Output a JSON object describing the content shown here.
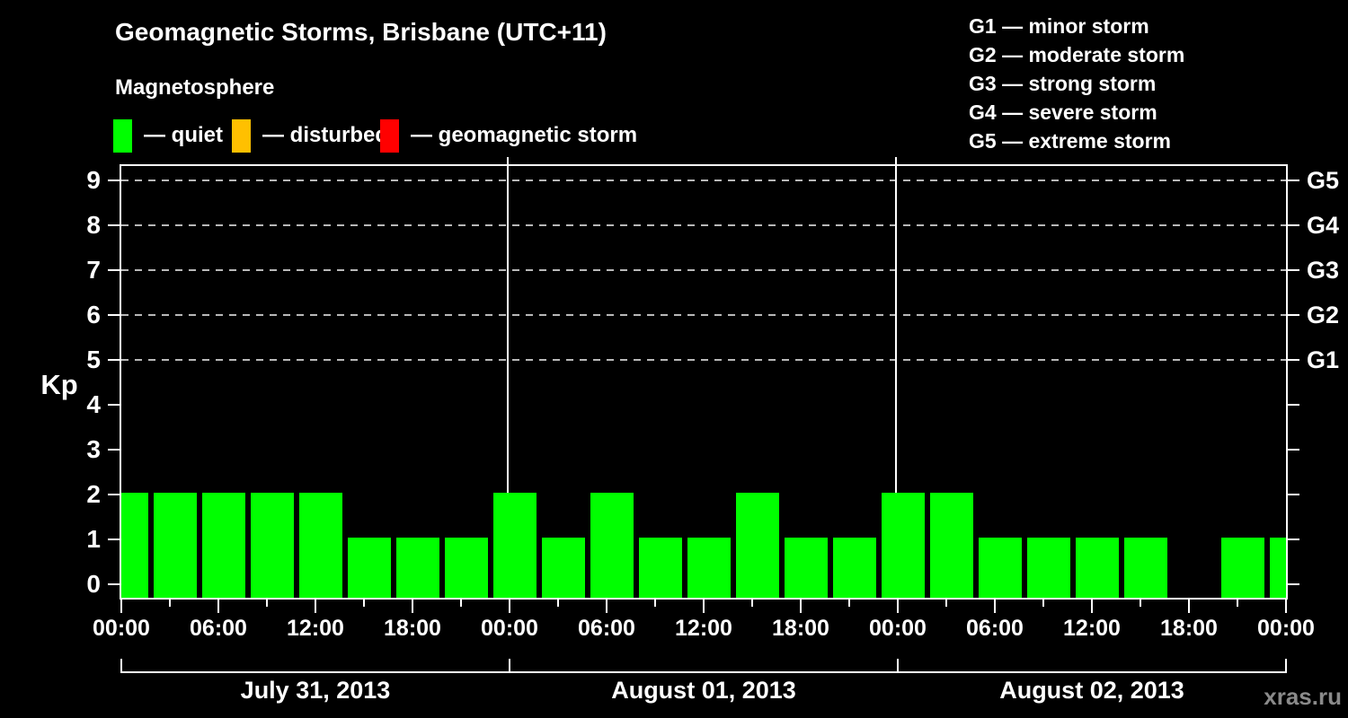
{
  "title": "Geomagnetic Storms, Brisbane (UTC+11)",
  "subtitle": "Magnetosphere",
  "condition_legend": [
    {
      "name": "quiet",
      "label": "— quiet",
      "color": "#00ff00"
    },
    {
      "name": "disturbed",
      "label": "— disturbed",
      "color": "#ffc000"
    },
    {
      "name": "geomagnetic-storm",
      "label": "— geomagnetic storm",
      "color": "#ff0000"
    }
  ],
  "storm_scale_legend": [
    "G1 — minor storm",
    "G2 — moderate storm",
    "G3 — strong storm",
    "G4 — severe storm",
    "G5 — extreme storm"
  ],
  "watermark": "xras.ru",
  "chart_data": {
    "type": "bar",
    "title": "Geomagnetic Storms, Brisbane (UTC+11)",
    "subtitle": "Magnetosphere",
    "ylabel": "Kp",
    "y_ticks": [
      0,
      1,
      2,
      3,
      4,
      5,
      6,
      7,
      8,
      9
    ],
    "ylim": [
      0,
      9.7
    ],
    "grid": "dashed horizontal at Kp 5-9",
    "grid_dashed_at_kp": [
      5,
      6,
      7,
      8,
      9
    ],
    "right_axis_labels": [
      {
        "kp": 5,
        "label": "G1"
      },
      {
        "kp": 6,
        "label": "G2"
      },
      {
        "kp": 7,
        "label": "G3"
      },
      {
        "kp": 8,
        "label": "G4"
      },
      {
        "kp": 9,
        "label": "G5"
      }
    ],
    "bar_color": "#00ff00",
    "interval_hours": 3,
    "time_tick_labels": [
      "00:00",
      "06:00",
      "12:00",
      "18:00"
    ],
    "final_time_label": "00:00",
    "days": [
      {
        "date": "July 31, 2013",
        "kp": [
          2,
          2,
          2,
          2,
          2,
          1,
          1,
          1
        ]
      },
      {
        "date": "August 01, 2013",
        "kp": [
          2,
          1,
          2,
          1,
          1,
          2,
          1,
          1
        ]
      },
      {
        "date": "August 02, 2013",
        "kp": [
          2,
          2,
          1,
          1,
          1,
          1,
          null,
          1
        ]
      }
    ],
    "next_day_partial_kp": 1,
    "legend_position": "top-left",
    "background": "#000000"
  }
}
